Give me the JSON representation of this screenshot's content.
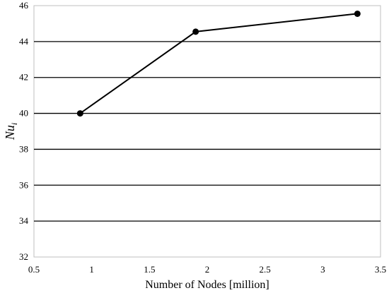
{
  "chart_data": {
    "type": "line",
    "title": "",
    "xlabel": "Number of Nodes [million]",
    "ylabel": "Nu",
    "ylabel_subscript": "i",
    "xlim": [
      0.5,
      3.5
    ],
    "ylim": [
      32,
      46
    ],
    "x_ticks": [
      "0.5",
      "1",
      "1.5",
      "2",
      "2.5",
      "3",
      "3.5"
    ],
    "y_ticks": [
      "32",
      "34",
      "36",
      "38",
      "40",
      "42",
      "44",
      "46"
    ],
    "grid": "horizontal",
    "series": [
      {
        "x": [
          0.9,
          1.9,
          3.3
        ],
        "y": [
          40.0,
          44.55,
          45.55
        ]
      }
    ],
    "colors": {
      "line": "#000000",
      "grid": "#000000",
      "frame": "#bfbfbf"
    }
  }
}
